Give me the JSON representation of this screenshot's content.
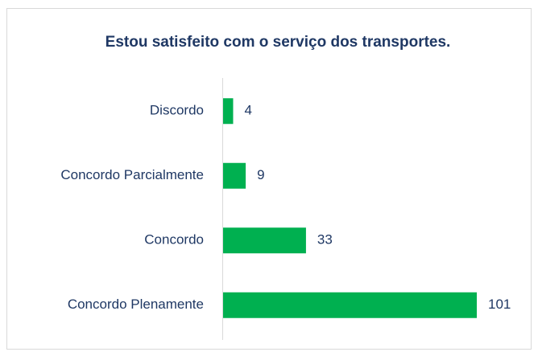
{
  "chart_data": {
    "type": "bar",
    "orientation": "horizontal",
    "title": "Estou satisfeito com o serviço dos transportes.",
    "categories": [
      "Discordo",
      "Concordo Parcialmente",
      "Concordo",
      "Concordo Plenamente"
    ],
    "values": [
      4,
      9,
      33,
      101
    ],
    "color": "#00b050"
  }
}
